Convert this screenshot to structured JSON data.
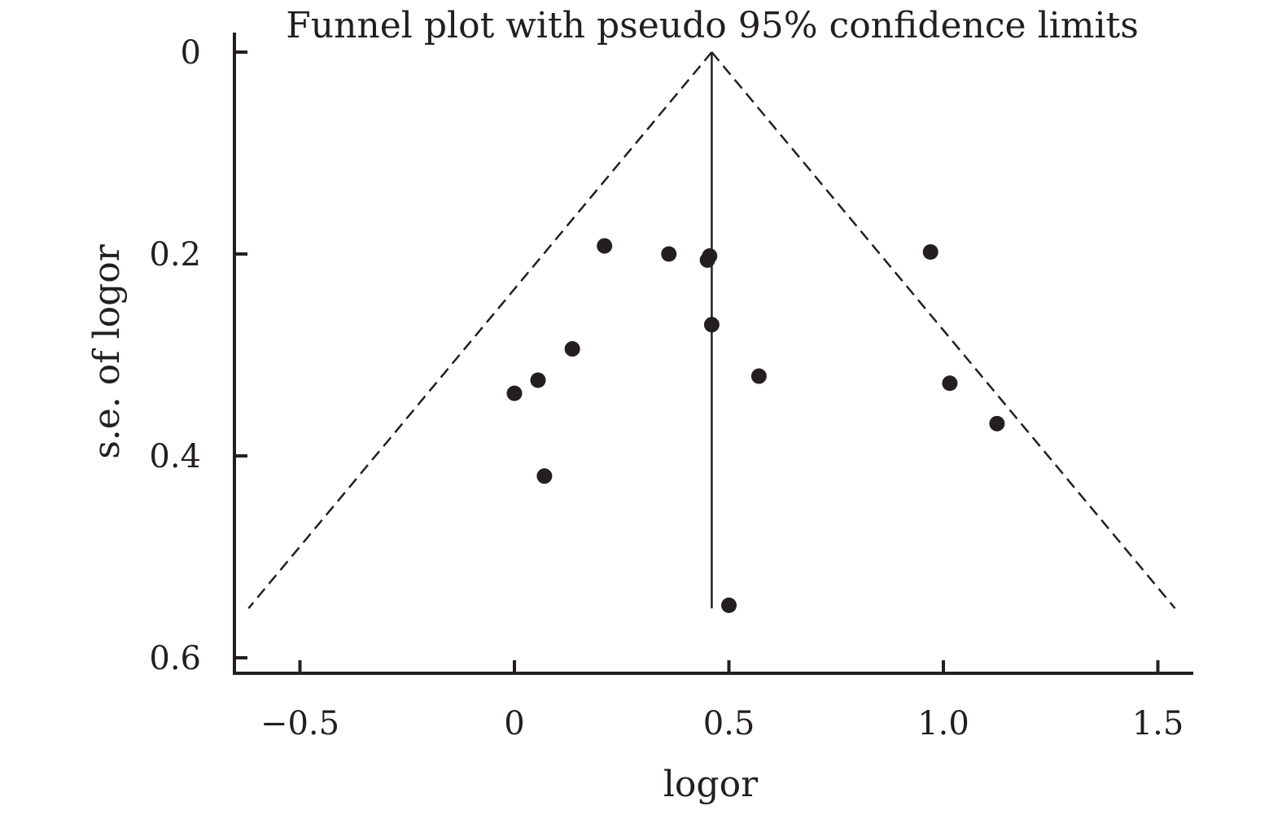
{
  "chart_data": {
    "type": "scatter",
    "title": "Funnel plot with pseudo 95% confidence limits",
    "xlabel": "logor",
    "ylabel": "s.e. of logor",
    "xlim": [
      -0.66,
      1.57
    ],
    "ylim": [
      0,
      0.618
    ],
    "y_axis_inverted": true,
    "grid": false,
    "legend": "none",
    "x_ticks": [
      {
        "value": -0.5,
        "label": "−0.5"
      },
      {
        "value": 0,
        "label": "0"
      },
      {
        "value": 0.5,
        "label": "0.5"
      },
      {
        "value": 1.0,
        "label": "1.0"
      },
      {
        "value": 1.5,
        "label": "1.5"
      }
    ],
    "y_ticks": [
      {
        "value": 0,
        "label": "0"
      },
      {
        "value": 0.2,
        "label": "0.2"
      },
      {
        "value": 0.4,
        "label": "0.4"
      },
      {
        "value": 0.6,
        "label": "0.6"
      }
    ],
    "pooled_estimate": 0.46,
    "pseudo_ci_max_se": 0.551,
    "points": [
      {
        "x": 0.21,
        "y": 0.192
      },
      {
        "x": 0.36,
        "y": 0.2
      },
      {
        "x": 0.45,
        "y": 0.206
      },
      {
        "x": 0.455,
        "y": 0.202
      },
      {
        "x": 0.97,
        "y": 0.198
      },
      {
        "x": 0.46,
        "y": 0.27
      },
      {
        "x": 0.135,
        "y": 0.294
      },
      {
        "x": 0.57,
        "y": 0.321
      },
      {
        "x": 0.055,
        "y": 0.325
      },
      {
        "x": 0.0,
        "y": 0.338
      },
      {
        "x": 1.015,
        "y": 0.328
      },
      {
        "x": 1.125,
        "y": 0.368
      },
      {
        "x": 0.07,
        "y": 0.42
      },
      {
        "x": 0.5,
        "y": 0.548
      }
    ],
    "colors": {
      "ink": "#231f20",
      "background": "#ffffff"
    }
  }
}
